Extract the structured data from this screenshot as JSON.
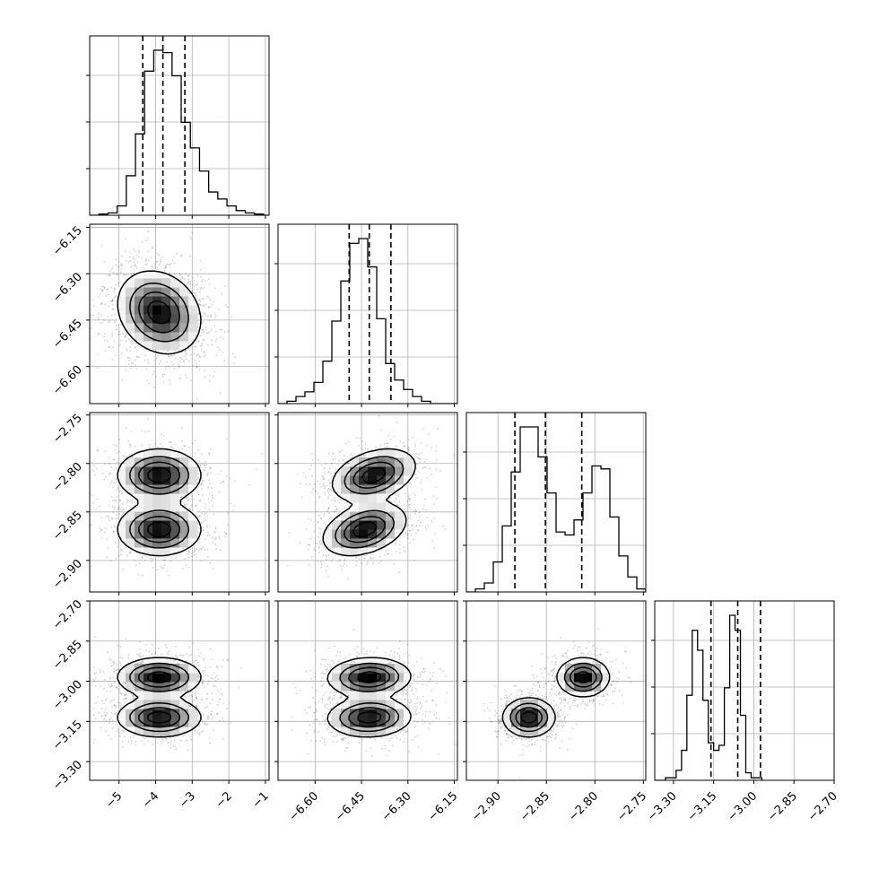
{
  "chart_data": {
    "type": "corner",
    "labels": [
      "",
      "",
      "",
      ""
    ],
    "grid": true,
    "contour_levels": 4,
    "colors": {
      "line": "#000000",
      "grid": "#b0b0b0",
      "frame": "#000000",
      "density_scale": [
        "#ffffff",
        "#000000"
      ],
      "scatter": "#000000"
    },
    "params": [
      {
        "index": 0,
        "range": [
          -5.8,
          -0.9
        ],
        "ticks": [
          -5,
          -4,
          -3,
          -2,
          -1
        ],
        "tick_labels": [
          "-5",
          "-4",
          "-3",
          "-2",
          "-1"
        ],
        "quantiles": [
          -4.35,
          -3.8,
          -3.2
        ],
        "hist": {
          "edges_start": -5.8,
          "bin_width": 0.25,
          "counts": [
            0,
            0.5,
            1,
            4,
            17,
            35,
            62,
            71,
            70,
            60,
            40,
            29,
            19,
            10,
            7,
            4,
            2,
            1,
            0.5,
            0
          ]
        }
      },
      {
        "index": 1,
        "range": [
          -6.72,
          -6.14
        ],
        "ticks": [
          -6.6,
          -6.45,
          -6.3,
          -6.15
        ],
        "tick_labels": [
          "-6.60",
          "-6.45",
          "-6.30",
          "-6.15"
        ],
        "quantiles": [
          -6.49,
          -6.425,
          -6.355
        ],
        "hist": {
          "edges_start": -6.72,
          "bin_width": 0.029,
          "counts": [
            0,
            1,
            3,
            5,
            9,
            18,
            35,
            52,
            68,
            70,
            58,
            36,
            17,
            10,
            6,
            3,
            1,
            0,
            0,
            0
          ]
        }
      },
      {
        "index": 2,
        "range": [
          -2.9325,
          -2.7475
        ],
        "ticks": [
          -2.9,
          -2.85,
          -2.8,
          -2.75
        ],
        "tick_labels": [
          "-2.90",
          "-2.85",
          "-2.80",
          "-2.75"
        ],
        "quantiles": [
          -2.8825,
          -2.851,
          -2.8135
        ],
        "hist": {
          "edges_start": -2.9325,
          "bin_width": 0.00925,
          "counts": [
            0,
            1,
            3,
            10,
            22,
            40,
            55,
            55,
            45,
            33,
            20,
            19,
            24,
            33,
            42,
            41,
            25,
            12,
            5,
            1
          ]
        }
      },
      {
        "index": 3,
        "range": [
          -3.37,
          -2.7
        ],
        "ticks": [
          -3.3,
          -3.15,
          -3.0,
          -2.85,
          -2.7
        ],
        "tick_labels": [
          "-3.30",
          "-3.15",
          "-3.00",
          "-2.85",
          "-2.70"
        ],
        "quantiles": [
          -3.16,
          -3.06,
          -2.975
        ],
        "hist": {
          "edges_start": -3.37,
          "bin_width": 0.02,
          "counts": [
            0,
            0,
            1,
            1,
            4,
            12,
            34,
            60,
            52,
            32,
            15,
            12,
            14,
            37,
            66,
            60,
            26,
            3,
            1,
            1
          ]
        }
      }
    ],
    "density": {
      "components": [
        {
          "w": 0.5,
          "mean": [
            -3.9,
            -6.425,
            -2.868,
            -3.135
          ],
          "sd": [
            0.55,
            0.065,
            0.013,
            0.035
          ]
        },
        {
          "w": 0.5,
          "mean": [
            -3.9,
            -6.425,
            -2.812,
            -2.985
          ],
          "sd": [
            0.55,
            0.065,
            0.013,
            0.035
          ]
        }
      ],
      "pair_correlations": {
        "0-1": -0.2,
        "1-2": 0.35,
        "1-3": 0.05,
        "0-2": 0.0,
        "0-3": 0.0,
        "2-3": 0.0
      },
      "component_offsets_1": [
        -0.015,
        0.015
      ]
    }
  }
}
